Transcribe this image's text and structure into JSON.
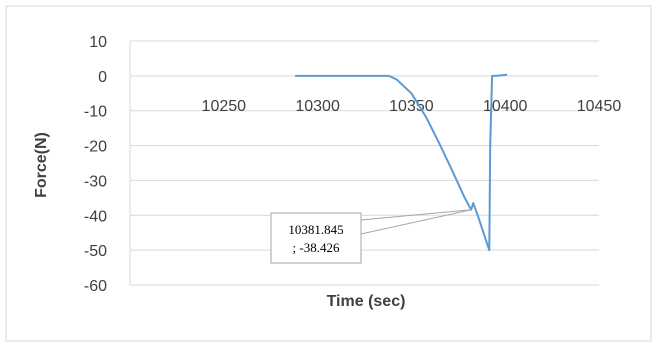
{
  "chart_data": {
    "type": "scatter",
    "title": "",
    "xlabel": "Time (sec)",
    "ylabel": "Force(N)",
    "xlim": [
      10200,
      10450
    ],
    "ylim": [
      -60,
      10
    ],
    "x_ticks": [
      10250,
      10300,
      10350,
      10400,
      10450
    ],
    "y_ticks": [
      10,
      0,
      -10,
      -20,
      -30,
      -40,
      -50,
      -60
    ],
    "x_tick_labels": [
      "10250",
      "10300",
      "10350",
      "10400",
      "10450"
    ],
    "y_tick_labels": [
      "10",
      "0",
      "-10",
      "-20",
      "-30",
      "-40",
      "-50",
      "-60"
    ],
    "grid": "horizontal",
    "legend": "none",
    "series": [
      {
        "color": "#5B9BD5",
        "x": [
          10288,
          10300,
          10320,
          10338,
          10342,
          10350,
          10358,
          10365,
          10372,
          10378,
          10381.845,
          10383,
          10386,
          10389,
          10391.5,
          10392,
          10393,
          10395,
          10401
        ],
        "y": [
          0,
          0,
          0,
          0,
          -1,
          -5,
          -12,
          -19.5,
          -27.5,
          -34.5,
          -38.426,
          -36.5,
          -41,
          -46,
          -50,
          -20,
          0,
          0,
          0.3
        ]
      }
    ],
    "annotation": {
      "line1": "10381.845",
      "line2": "; -38.426",
      "point": [
        10381.845,
        -38.426
      ]
    }
  }
}
